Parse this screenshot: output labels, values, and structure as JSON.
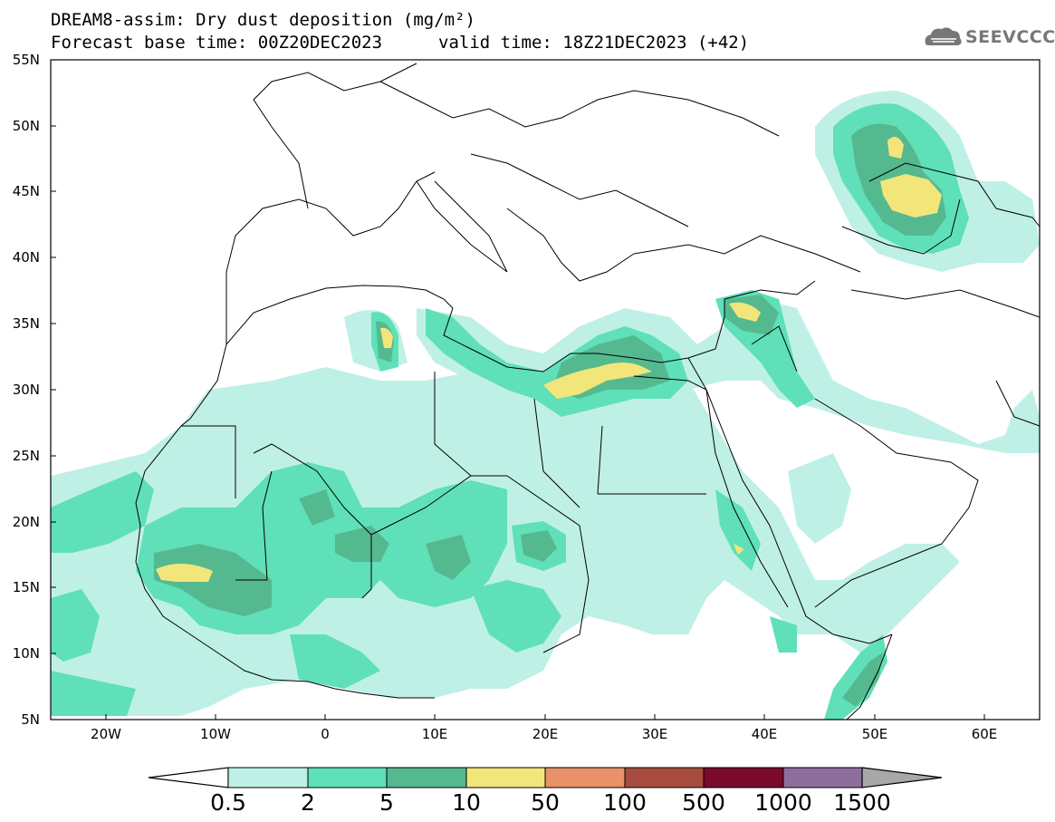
{
  "title": {
    "line1": "DREAM8-assim: Dry dust deposition (mg/m²)",
    "base_time": "Forecast base time: 00Z20DEC2023",
    "valid_time": "valid time: 18Z21DEC2023 (+42)"
  },
  "logo": {
    "text": "SEEVCCC",
    "icon": "cloud-icon"
  },
  "axes": {
    "lat_labels": [
      "55N",
      "50N",
      "45N",
      "40N",
      "35N",
      "30N",
      "25N",
      "20N",
      "15N",
      "10N",
      "5N"
    ],
    "lon_labels": [
      "20W",
      "10W",
      "0",
      "10E",
      "20E",
      "30E",
      "40E",
      "50E",
      "60E"
    ]
  },
  "legend": {
    "labels": [
      "0.5",
      "2",
      "5",
      "10",
      "50",
      "100",
      "500",
      "1000",
      "1500"
    ],
    "colors": [
      "#bff0e6",
      "#5fe0b8",
      "#55b990",
      "#f2e67a",
      "#e8916a",
      "#a84b3f",
      "#7a0a2a",
      "#8e6e9c",
      "#a8a8a8"
    ]
  },
  "colors": {
    "level1": "#bff0e6",
    "level2": "#5fe0b8",
    "level3": "#55b990",
    "level4": "#f2e67a"
  }
}
